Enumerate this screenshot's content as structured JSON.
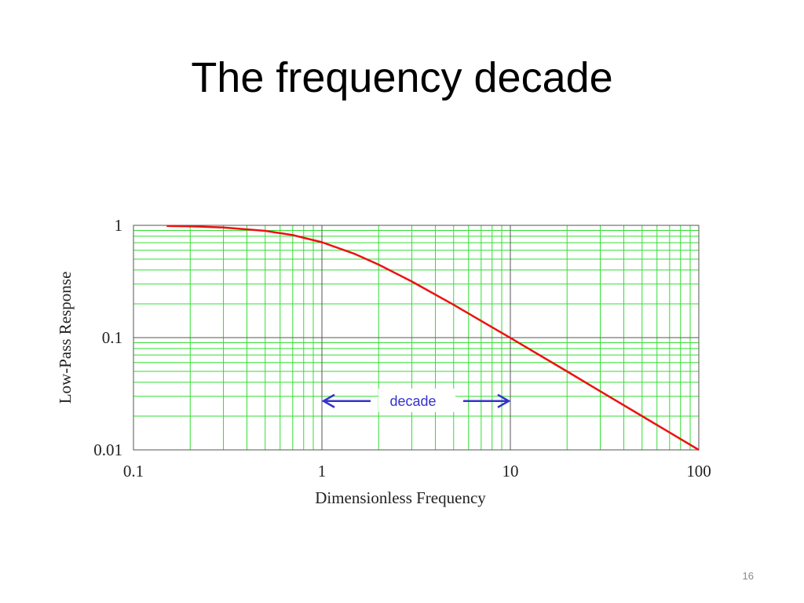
{
  "slide": {
    "title": "The frequency decade",
    "page_number": "16"
  },
  "colors": {
    "minor_grid": "#33dd33",
    "major_grid": "#555555",
    "curve": "#ee1111",
    "annotation": "#3333cc"
  },
  "chart_data": {
    "type": "line",
    "title": "",
    "xlabel": "Dimensionless Frequency",
    "ylabel": "Low-Pass Response",
    "xscale": "log",
    "yscale": "log",
    "xlim": [
      0.1,
      100
    ],
    "ylim": [
      0.01,
      1
    ],
    "x_ticks": [
      0.1,
      1,
      10,
      100
    ],
    "x_tick_labels": [
      "0.1",
      "1",
      "10",
      "100"
    ],
    "y_ticks": [
      0.01,
      0.1,
      1
    ],
    "y_tick_labels": [
      "0.01",
      "0.1",
      "1"
    ],
    "grid": true,
    "legend": "none",
    "series": [
      {
        "x": [
          0.15,
          0.2,
          0.3,
          0.5,
          0.7,
          1,
          1.5,
          2,
          3,
          5,
          7,
          10,
          20,
          30,
          50,
          70,
          100
        ],
        "y": [
          0.989,
          0.981,
          0.958,
          0.894,
          0.819,
          0.707,
          0.555,
          0.447,
          0.316,
          0.196,
          0.141,
          0.0995,
          0.05,
          0.0333,
          0.02,
          0.0143,
          0.01
        ]
      }
    ],
    "annotations": [
      {
        "text": "decade",
        "from_x": 1,
        "to_x": 10,
        "y": 0.03
      }
    ]
  }
}
